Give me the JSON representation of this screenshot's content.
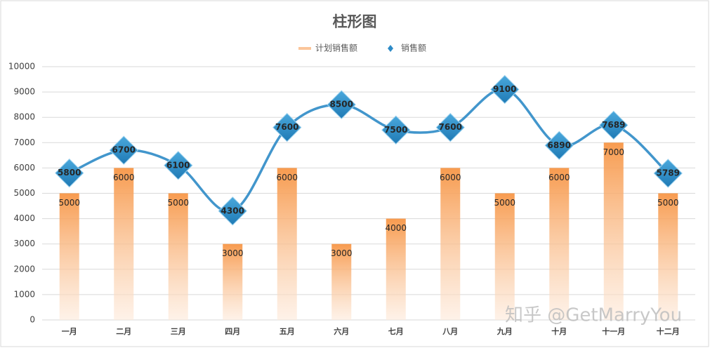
{
  "chart_data": {
    "type": "combo",
    "title": "柱形图",
    "categories": [
      "一月",
      "二月",
      "三月",
      "四月",
      "五月",
      "六月",
      "七月",
      "八月",
      "九月",
      "十月",
      "十一月",
      "十二月"
    ],
    "series": [
      {
        "name": "计划销售额",
        "type": "bar",
        "color": "#f79646",
        "values": [
          5000,
          6000,
          5000,
          3000,
          6000,
          3000,
          4000,
          6000,
          5000,
          6000,
          7000,
          5000
        ]
      },
      {
        "name": "销售额",
        "type": "line",
        "color": "#2e8bc7",
        "values": [
          5800,
          6700,
          6100,
          4300,
          7600,
          8500,
          7500,
          7600,
          9100,
          6890,
          7689,
          5789
        ]
      }
    ],
    "ylim": [
      0,
      10000
    ],
    "yticks": [
      0,
      1000,
      2000,
      3000,
      4000,
      5000,
      6000,
      7000,
      8000,
      9000,
      10000
    ],
    "grid": true,
    "legend": "top",
    "watermark": "知乎 @GetMarryYou"
  }
}
